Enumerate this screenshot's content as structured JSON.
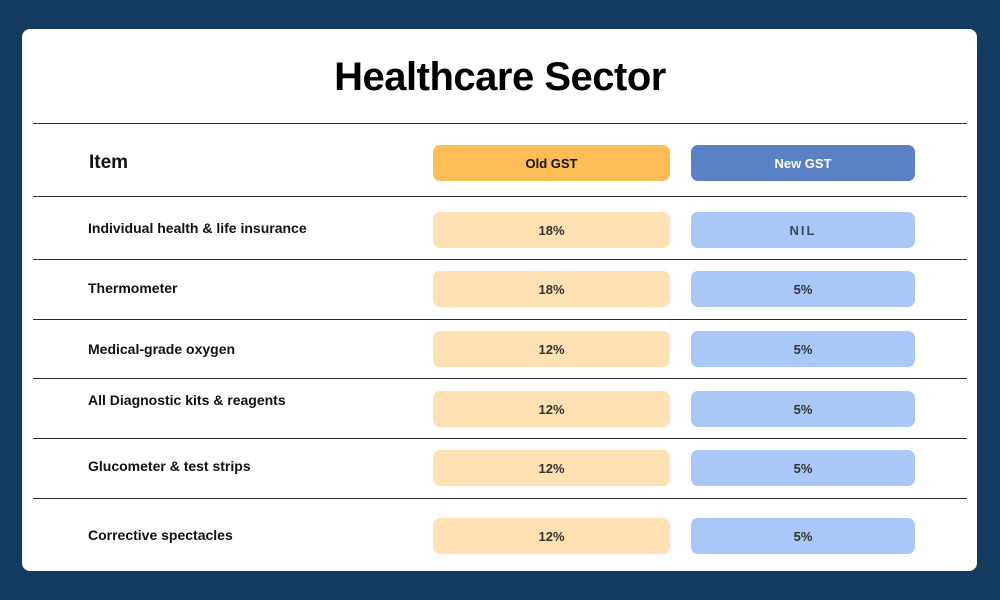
{
  "title": "Healthcare Sector",
  "header": {
    "item": "Item",
    "old": "Old GST",
    "new": "New GST"
  },
  "rows": [
    {
      "item": "Individual health & life insurance",
      "old": "18%",
      "new": "NIL"
    },
    {
      "item": "Thermometer",
      "old": "18%",
      "new": "5%"
    },
    {
      "item": "Medical-grade oxygen",
      "old": "12%",
      "new": "5%"
    },
    {
      "item": "All Diagnostic kits & reagents",
      "old": "12%",
      "new": "5%"
    },
    {
      "item": "Glucometer & test strips",
      "old": "12%",
      "new": "5%"
    },
    {
      "item": "Corrective spectacles",
      "old": "12%",
      "new": "5%"
    }
  ],
  "colors": {
    "background": "#133b61",
    "old_header": "#febd57",
    "new_header": "#5a80c5",
    "old_cell": "#fde1b3",
    "new_cell": "#a9c8f8"
  }
}
